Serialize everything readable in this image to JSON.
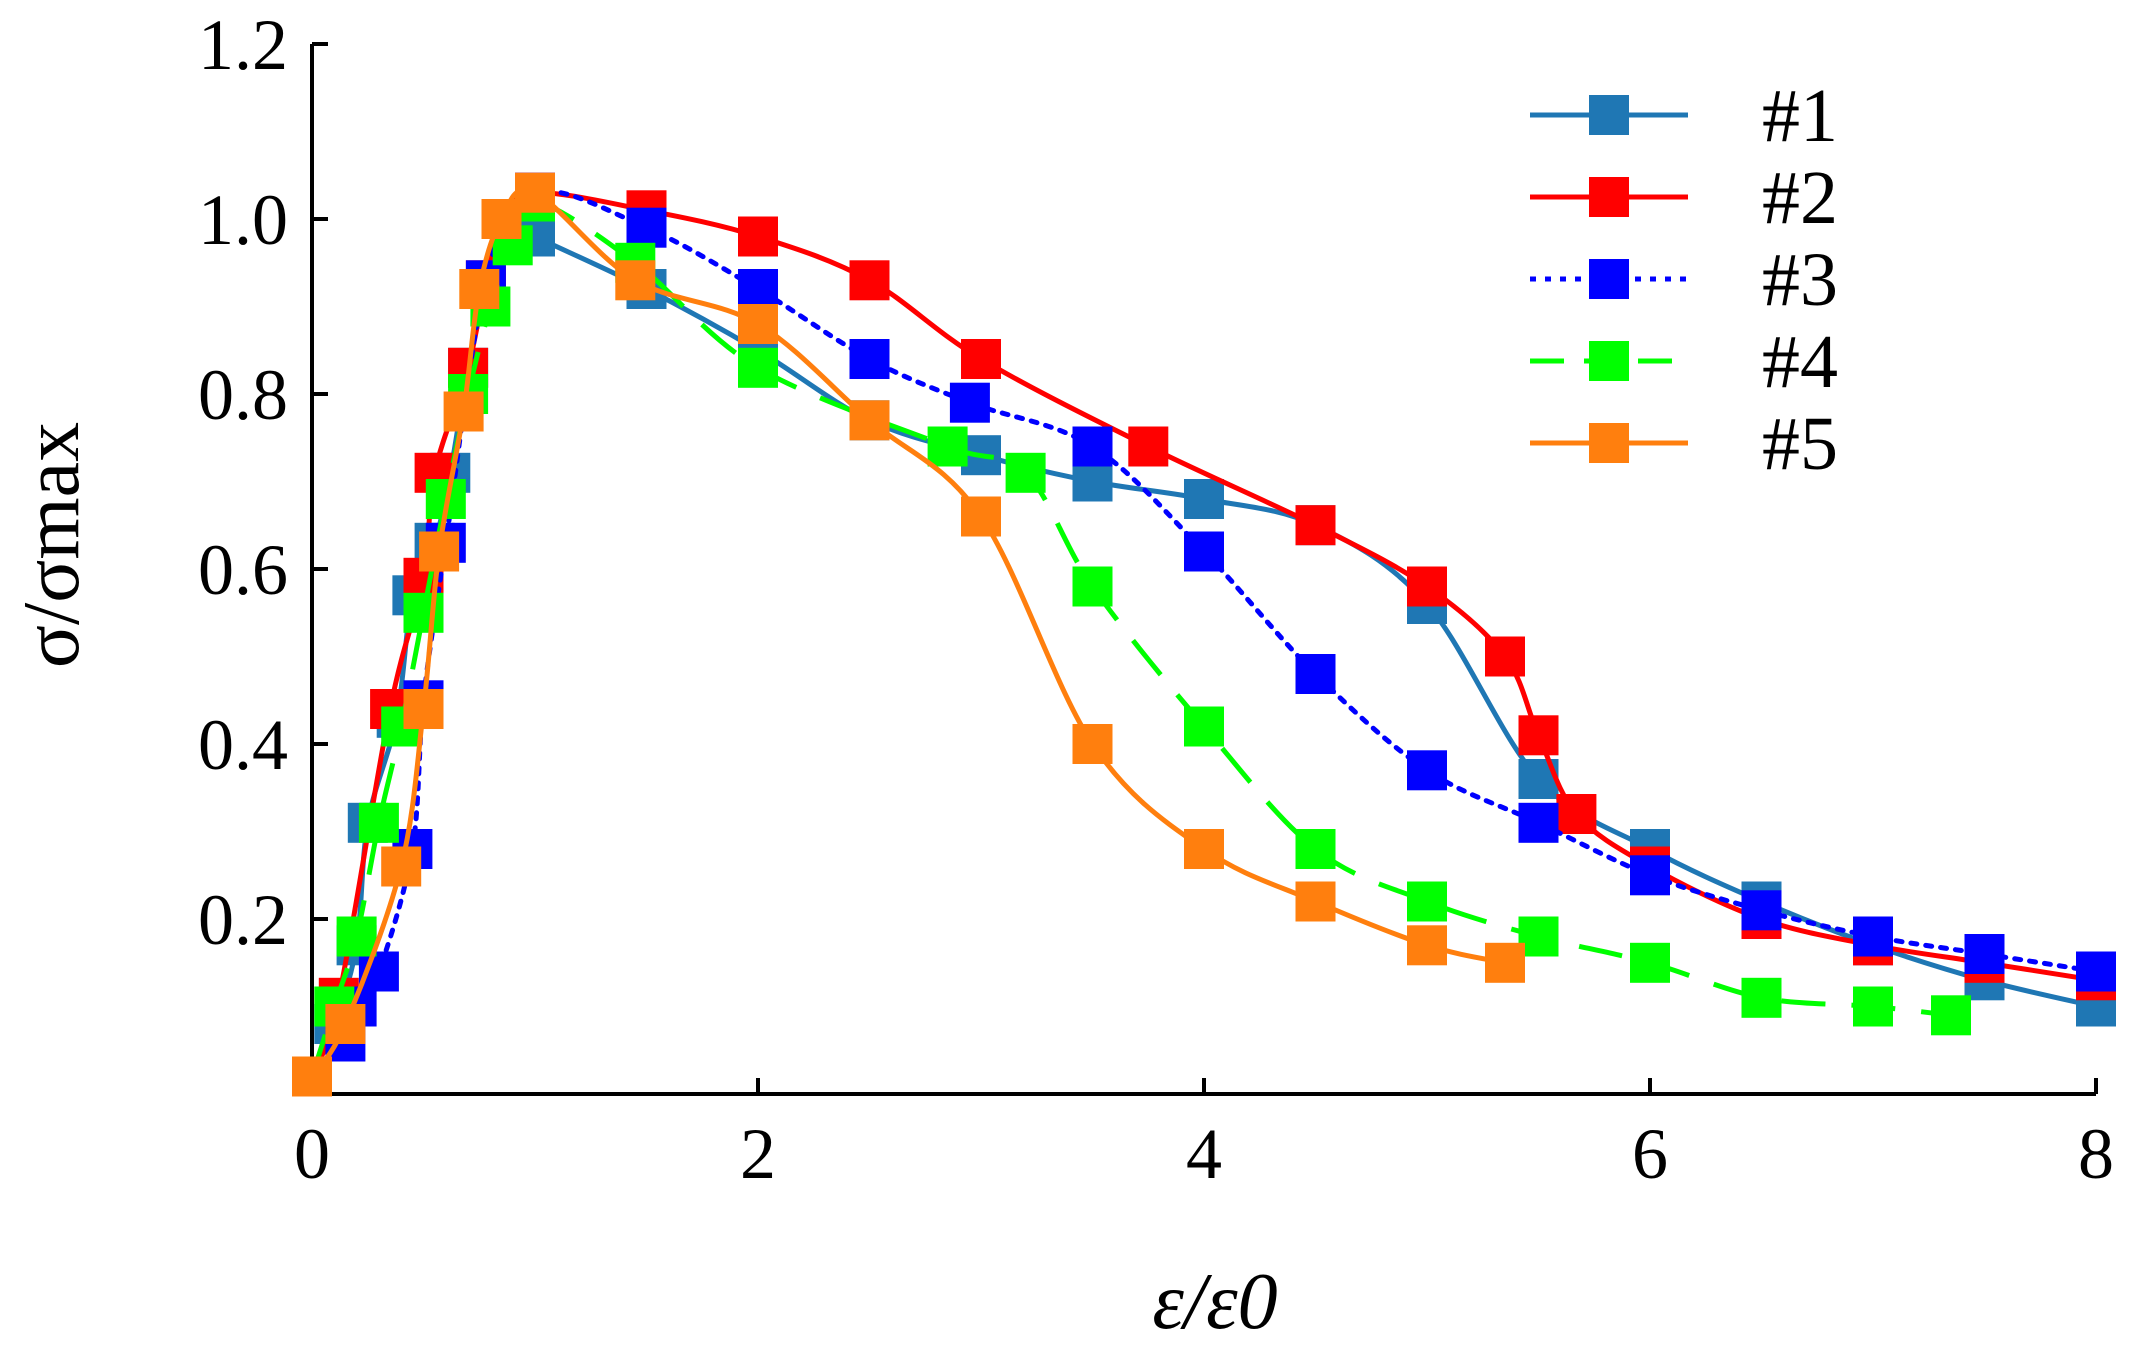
{
  "chart_data": {
    "type": "line",
    "title": "",
    "xlabel": "ε/ε0",
    "ylabel": "σ/σmax",
    "xlim": [
      0,
      8
    ],
    "ylim": [
      0,
      1.2
    ],
    "x_ticks": [
      "0",
      "2",
      "4",
      "6",
      "8"
    ],
    "y_ticks": [
      "0.2",
      "0.4",
      "0.6",
      "0.8",
      "1.0",
      "1.2"
    ],
    "x_tick_values": [
      0,
      2,
      4,
      6,
      8
    ],
    "y_tick_values": [
      0.2,
      0.4,
      0.6,
      0.8,
      1.0,
      1.2
    ],
    "grid": false,
    "legend_position": "top-right",
    "series": [
      {
        "name": "#1",
        "color": "#1f77b4",
        "dash": "solid",
        "points": [
          [
            0,
            0.02
          ],
          [
            0.1,
            0.08
          ],
          [
            0.2,
            0.17
          ],
          [
            0.25,
            0.31
          ],
          [
            0.38,
            0.43
          ],
          [
            0.45,
            0.57
          ],
          [
            0.55,
            0.63
          ],
          [
            0.62,
            0.71
          ],
          [
            0.7,
            0.83
          ],
          [
            0.78,
            0.92
          ],
          [
            0.85,
            1.0
          ],
          [
            1.0,
            0.98
          ],
          [
            1.5,
            0.92
          ],
          [
            2.0,
            0.85
          ],
          [
            2.5,
            0.77
          ],
          [
            3.0,
            0.73
          ],
          [
            3.5,
            0.7
          ],
          [
            4.0,
            0.68
          ],
          [
            4.5,
            0.65
          ],
          [
            5.0,
            0.56
          ],
          [
            5.5,
            0.36
          ],
          [
            6.0,
            0.28
          ],
          [
            6.5,
            0.22
          ],
          [
            7.0,
            0.17
          ],
          [
            7.5,
            0.13
          ],
          [
            8.0,
            0.1
          ]
        ]
      },
      {
        "name": "#2",
        "color": "#ff0000",
        "dash": "solid",
        "points": [
          [
            0,
            0.02
          ],
          [
            0.12,
            0.11
          ],
          [
            0.35,
            0.44
          ],
          [
            0.5,
            0.59
          ],
          [
            0.55,
            0.71
          ],
          [
            0.7,
            0.83
          ],
          [
            0.78,
            0.93
          ],
          [
            0.85,
            1.0
          ],
          [
            1.0,
            1.03
          ],
          [
            1.5,
            1.01
          ],
          [
            2.0,
            0.98
          ],
          [
            2.5,
            0.93
          ],
          [
            3.0,
            0.84
          ],
          [
            3.75,
            0.74
          ],
          [
            4.5,
            0.65
          ],
          [
            5.0,
            0.58
          ],
          [
            5.35,
            0.5
          ],
          [
            5.5,
            0.41
          ],
          [
            5.67,
            0.32
          ],
          [
            6.0,
            0.26
          ],
          [
            6.5,
            0.2
          ],
          [
            7.0,
            0.17
          ],
          [
            7.5,
            0.15
          ],
          [
            8.0,
            0.13
          ]
        ]
      },
      {
        "name": "#3",
        "color": "#0000ff",
        "dash": "dotted",
        "points": [
          [
            0,
            0.02
          ],
          [
            0.15,
            0.06
          ],
          [
            0.2,
            0.1
          ],
          [
            0.3,
            0.14
          ],
          [
            0.45,
            0.28
          ],
          [
            0.5,
            0.45
          ],
          [
            0.6,
            0.63
          ],
          [
            0.78,
            0.93
          ],
          [
            1.0,
            1.03
          ],
          [
            1.5,
            0.99
          ],
          [
            2.0,
            0.92
          ],
          [
            2.5,
            0.84
          ],
          [
            2.95,
            0.79
          ],
          [
            3.5,
            0.74
          ],
          [
            4.0,
            0.62
          ],
          [
            4.5,
            0.48
          ],
          [
            5.0,
            0.37
          ],
          [
            5.5,
            0.31
          ],
          [
            6.0,
            0.25
          ],
          [
            6.5,
            0.21
          ],
          [
            7.0,
            0.18
          ],
          [
            7.5,
            0.16
          ],
          [
            8.0,
            0.14
          ]
        ]
      },
      {
        "name": "#4",
        "color": "#00ff00",
        "dash": "dashed",
        "points": [
          [
            0,
            0.02
          ],
          [
            0.1,
            0.1
          ],
          [
            0.2,
            0.18
          ],
          [
            0.3,
            0.31
          ],
          [
            0.4,
            0.42
          ],
          [
            0.5,
            0.55
          ],
          [
            0.6,
            0.68
          ],
          [
            0.7,
            0.8
          ],
          [
            0.8,
            0.9
          ],
          [
            0.9,
            0.97
          ],
          [
            1.0,
            1.02
          ],
          [
            1.45,
            0.95
          ],
          [
            2.0,
            0.83
          ],
          [
            2.85,
            0.74
          ],
          [
            3.2,
            0.71
          ],
          [
            3.5,
            0.58
          ],
          [
            4.0,
            0.42
          ],
          [
            4.5,
            0.28
          ],
          [
            5.0,
            0.22
          ],
          [
            5.5,
            0.18
          ],
          [
            6.0,
            0.15
          ],
          [
            6.5,
            0.11
          ],
          [
            7.0,
            0.1
          ],
          [
            7.35,
            0.09
          ]
        ]
      },
      {
        "name": "#5",
        "color": "#ff7f0e",
        "dash": "solid",
        "points": [
          [
            0,
            0.02
          ],
          [
            0.15,
            0.08
          ],
          [
            0.4,
            0.26
          ],
          [
            0.5,
            0.44
          ],
          [
            0.57,
            0.62
          ],
          [
            0.68,
            0.78
          ],
          [
            0.75,
            0.92
          ],
          [
            0.85,
            1.0
          ],
          [
            1.0,
            1.03
          ],
          [
            1.45,
            0.93
          ],
          [
            2.0,
            0.88
          ],
          [
            2.5,
            0.77
          ],
          [
            3.0,
            0.66
          ],
          [
            3.5,
            0.4
          ],
          [
            4.0,
            0.28
          ],
          [
            4.5,
            0.22
          ],
          [
            5.0,
            0.17
          ],
          [
            5.35,
            0.15
          ]
        ]
      }
    ]
  }
}
